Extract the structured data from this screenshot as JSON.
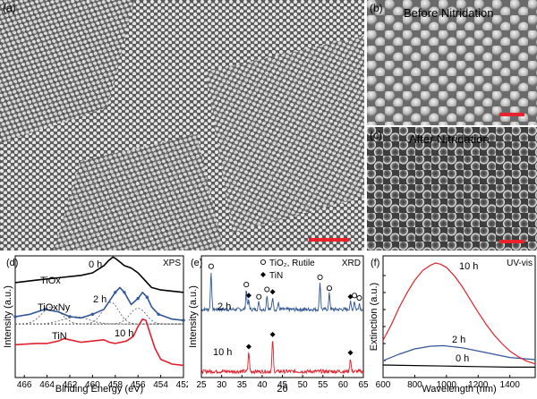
{
  "panels": {
    "a": {
      "letter": "(a)"
    },
    "b": {
      "letter": "(b)",
      "caption": "Before Nitridation"
    },
    "c": {
      "letter": "(c)",
      "caption": "After Nitridation"
    },
    "d": {
      "letter": "(d)",
      "tag": "XPS"
    },
    "e": {
      "letter": "(e)",
      "tag": "XRD"
    },
    "f": {
      "letter": "(f)",
      "tag": "UV-vis"
    }
  },
  "colors": {
    "black": "#000000",
    "blue": "#2f5596",
    "red": "#e0202a",
    "scale_bar": "#e8232c"
  },
  "chart_data": [
    {
      "panel": "d",
      "type": "line",
      "xlabel": "Binding Energy (eV)",
      "ylabel": "Intensity (a.u.)",
      "x_ticks": [
        "466",
        "464",
        "462",
        "460",
        "458",
        "456",
        "454",
        "452"
      ],
      "xlim": [
        466.8,
        452
      ],
      "x_reversed": true,
      "series_labels": {
        "0h": "0 h",
        "2h": "2 h",
        "10h": "10 h"
      },
      "annotations": {
        "tiox": "TiOx",
        "tioxny": "TiOxNy",
        "tin": "TiN"
      },
      "series": [
        {
          "name": "0 h",
          "color": "black",
          "x": [
            466.8,
            465,
            463,
            461,
            460,
            459,
            458.6,
            458.2,
            458,
            457.6,
            457.2,
            456.6,
            456,
            455.4,
            454.8,
            454,
            453,
            452
          ],
          "y": [
            0.78,
            0.8,
            0.82,
            0.84,
            0.86,
            0.92,
            0.96,
            0.99,
            0.98,
            0.95,
            0.92,
            0.9,
            0.86,
            0.8,
            0.74,
            0.72,
            0.71,
            0.7
          ]
        },
        {
          "name": "2 h",
          "color": "blue",
          "x": [
            466.8,
            465.5,
            464.2,
            463,
            462,
            461,
            460,
            459,
            458,
            457.6,
            457.2,
            456.6,
            456,
            455.6,
            455.2,
            454.8,
            454.2,
            453,
            452
          ],
          "y": [
            0.5,
            0.52,
            0.56,
            0.54,
            0.5,
            0.49,
            0.52,
            0.56,
            0.7,
            0.74,
            0.7,
            0.6,
            0.65,
            0.7,
            0.66,
            0.58,
            0.52,
            0.48,
            0.47
          ]
        },
        {
          "name": "10 h",
          "color": "red",
          "x": [
            466.8,
            465,
            464,
            463,
            462.5,
            462,
            461,
            460,
            459,
            458.5,
            458,
            457,
            456.4,
            456,
            455.6,
            455.3,
            455,
            454.5,
            454,
            453,
            452
          ],
          "y": [
            0.27,
            0.28,
            0.28,
            0.3,
            0.32,
            0.31,
            0.29,
            0.3,
            0.31,
            0.29,
            0.28,
            0.3,
            0.34,
            0.42,
            0.48,
            0.47,
            0.38,
            0.24,
            0.15,
            0.11,
            0.1
          ]
        }
      ]
    },
    {
      "panel": "e",
      "type": "line",
      "xlabel": "2θ",
      "ylabel": "Intensity (a.u.)",
      "x_ticks": [
        "25",
        "30",
        "35",
        "40",
        "45",
        "50",
        "55",
        "60",
        "65"
      ],
      "xlim": [
        25,
        65
      ],
      "legend": {
        "rutile": "TiO₂, Rutile",
        "tin": "TiN"
      },
      "series_labels": {
        "2h": "2 h",
        "10h": "10 h"
      },
      "series": [
        {
          "name": "2 h",
          "color": "blue",
          "baseline": 0.56,
          "peaks": [
            [
              27.4,
              0.31
            ],
            [
              36.1,
              0.16
            ],
            [
              36.7,
              0.07
            ],
            [
              39.2,
              0.06
            ],
            [
              41.2,
              0.12
            ],
            [
              42.6,
              0.1
            ],
            [
              44.0,
              0.05
            ],
            [
              54.3,
              0.22
            ],
            [
              56.6,
              0.13
            ],
            [
              61.8,
              0.06
            ],
            [
              62.8,
              0.07
            ],
            [
              64.0,
              0.05
            ]
          ],
          "rutile_markers": [
            27.4,
            36.1,
            39.2,
            41.2,
            54.3,
            56.6,
            62.8,
            64.0
          ],
          "tin_markers": [
            36.7,
            42.6,
            61.8
          ]
        },
        {
          "name": "10 h",
          "color": "red",
          "baseline": 0.05,
          "peaks": [
            [
              36.7,
              0.16
            ],
            [
              42.6,
              0.26
            ],
            [
              61.8,
              0.11
            ]
          ],
          "tin_markers": [
            36.7,
            42.6,
            61.8
          ]
        }
      ]
    },
    {
      "panel": "f",
      "type": "line",
      "xlabel": "Wavelength (nm)",
      "ylabel": "Extinction (a.u.)",
      "x_ticks": [
        "600",
        "800",
        "1000",
        "1200",
        "1400"
      ],
      "xlim": [
        600,
        1560
      ],
      "series_labels": {
        "0h": "0 h",
        "2h": "2 h",
        "10h": "10 h"
      },
      "series": [
        {
          "name": "0 h",
          "color": "black",
          "x": [
            600,
            800,
            1000,
            1200,
            1400,
            1560
          ],
          "y": [
            0.05,
            0.045,
            0.04,
            0.035,
            0.03,
            0.03
          ]
        },
        {
          "name": "2 h",
          "color": "blue",
          "x": [
            600,
            700,
            800,
            900,
            980,
            1100,
            1200,
            1300,
            1400,
            1560
          ],
          "y": [
            0.09,
            0.15,
            0.2,
            0.225,
            0.23,
            0.21,
            0.18,
            0.15,
            0.12,
            0.1
          ]
        },
        {
          "name": "10 h",
          "color": "red",
          "x": [
            600,
            650,
            700,
            750,
            800,
            850,
            900,
            930,
            960,
            1000,
            1050,
            1100,
            1150,
            1200,
            1250,
            1300,
            1350,
            1400,
            1450,
            1500,
            1560
          ],
          "y": [
            0.28,
            0.42,
            0.58,
            0.72,
            0.84,
            0.93,
            0.98,
            1.0,
            0.99,
            0.96,
            0.88,
            0.78,
            0.66,
            0.54,
            0.43,
            0.33,
            0.25,
            0.18,
            0.13,
            0.09,
            0.06
          ]
        }
      ]
    }
  ]
}
